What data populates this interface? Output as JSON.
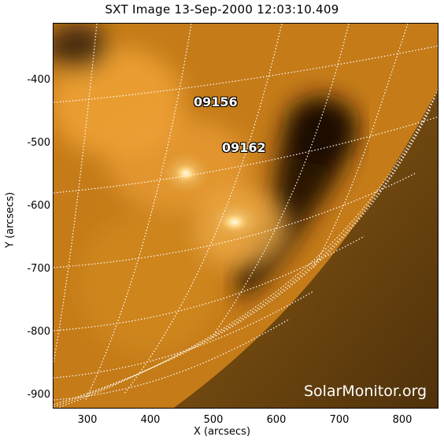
{
  "title": "SXT Image 13-Sep-2000 12:03:10.409",
  "x_axis": {
    "label": "X (arcsecs)",
    "ticks": [
      "300",
      "400",
      "500",
      "600",
      "700",
      "800"
    ]
  },
  "y_axis": {
    "label": "Y (arcsecs)",
    "ticks": [
      "-400",
      "-500",
      "-600",
      "-700",
      "-800",
      "-900"
    ]
  },
  "regions": [
    {
      "id": "region-09156",
      "label": "09156"
    },
    {
      "id": "region-09162",
      "label": "09162"
    }
  ],
  "credit": "SolarMonitor.org",
  "colors": {
    "bright": "#fff2c8",
    "mid": "#d98a1a",
    "dark": "#2a1a08",
    "grid": "#ffffff"
  }
}
